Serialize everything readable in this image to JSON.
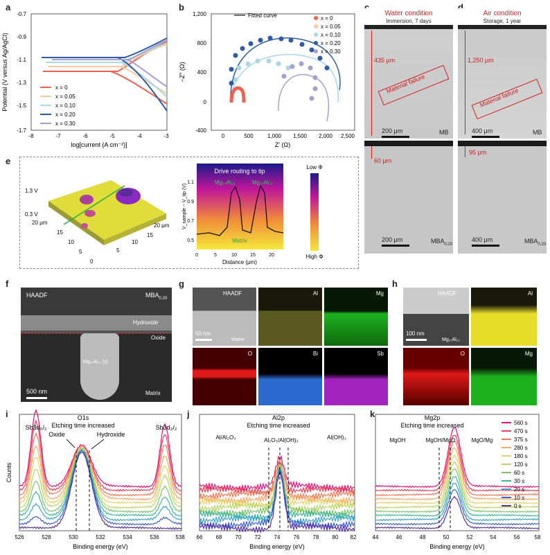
{
  "letters": {
    "a": "a",
    "b": "b",
    "c": "c",
    "d": "d",
    "e": "e",
    "f": "f",
    "g": "g",
    "h": "h",
    "i": "i",
    "j": "j",
    "k": "k"
  },
  "panel_a": {
    "ylabel": "Potential (V versus Ag/AgCl)",
    "xlabel": "log[current (A cm⁻²)]",
    "yticks": [
      "-0.7",
      "-0.9",
      "-1.1",
      "-1.3",
      "-1.5",
      "-1.7"
    ],
    "xticks": [
      "-8",
      "-7",
      "-6",
      "-5",
      "-4",
      "-3"
    ],
    "legend": [
      "x = 0",
      "x = 0.05",
      "x = 0.10",
      "x = 0.20",
      "x = 0.30"
    ]
  },
  "panel_b": {
    "ylabel": "−Z″ (Ω)",
    "xlabel": "Z′ (Ω)",
    "yticks": [
      "1,200",
      "800",
      "400",
      "0",
      "-400"
    ],
    "xticks": [
      "0",
      "500",
      "1,000",
      "1,500",
      "2,000",
      "2,500"
    ],
    "fitted": "Fitted curve",
    "legend": [
      "x = 0",
      "x = 0.05",
      "x = 0.10",
      "x = 0.20",
      "x = 0.30"
    ]
  },
  "panel_c": {
    "title": "Water condition",
    "subtitle": "Immersion, 7 days",
    "depth_top": "435 μm",
    "failure": "Material failure",
    "scale_top": "200 μm",
    "tag_top": "MB",
    "depth_bottom": "60 μm",
    "scale_bottom": "200 μm",
    "tag_bottom": "MBA",
    "tag_bottom_sub": "0.20"
  },
  "panel_d": {
    "title": "Air condition",
    "subtitle": "Storage, 1 year",
    "depth_top": "1,250 μm",
    "failure": "Material failure",
    "scale_top": "400 μm",
    "tag_top": "MB",
    "depth_bottom": "95 μm",
    "scale_bottom": "400 μm",
    "tag_bottom": "MBA",
    "tag_bottom_sub": "0.20"
  },
  "panel_e": {
    "z_top": "1.3 V",
    "z_bottom": "0.3 V",
    "axis_a": "20 μm",
    "axis_b": "20 μm",
    "ticks_a": [
      "15",
      "10",
      "5",
      "0"
    ],
    "ticks_b": [
      "15",
      "10",
      "5"
    ],
    "plot_title": "Drive routing to tip",
    "phase1": "Mg₁₇Al₁₂",
    "phase2": "Mg₁₇Al₁₂",
    "matrix": "Matrix",
    "ylabel": "V_sample − V_tip (V)",
    "xlabel": "Distance (μm)",
    "yticks": [
      "1.1",
      "0.9",
      "0.7",
      "0.5"
    ],
    "xticks": [
      "0",
      "5",
      "10",
      "15",
      "20"
    ],
    "low_phi": "Low Φ",
    "high_phi": "High Φ"
  },
  "panel_f": {
    "haadf": "HAADF",
    "tag": "MBA",
    "tag_sub": "0.20",
    "hydroxide": "Hydroxide",
    "oxide": "Oxide",
    "particle": "Mg₁₇Al₁₂ (γ)",
    "matrix": "Matrix",
    "scale": "500 nm"
  },
  "panel_g": {
    "haadf": "HAADF",
    "scale": "50 nm",
    "matrix": "Matrix",
    "maps": [
      "Al",
      "Mg",
      "O",
      "Bi",
      "Sb"
    ]
  },
  "panel_h": {
    "haadf": "HAADF",
    "scale": "100 nm",
    "phase": "Mg₁₇Al₁₂",
    "maps": [
      "Al",
      "O",
      "Mg"
    ]
  },
  "panel_i": {
    "title": "O1s",
    "subtitle": "Etching time increased",
    "left": "Sb3d₅/₂",
    "right": "Sb3d₃/₂",
    "oxide": "Oxide",
    "hydroxide": "Hydroxide",
    "ylabel": "Counts",
    "xlabel": "Binding energy (eV)",
    "xticks": [
      "526",
      "528",
      "530",
      "532",
      "534",
      "536",
      "538"
    ]
  },
  "panel_j": {
    "title": "Al2p",
    "subtitle": "Etching time increased",
    "l1": "Al/Al₂O₃",
    "l2": "Al₂O₃/Al(OH)₃",
    "l3": "Al(OH)₃",
    "xlabel": "Binding energy (eV)",
    "xticks": [
      "66",
      "68",
      "70",
      "72",
      "74",
      "76",
      "78",
      "80",
      "82"
    ]
  },
  "panel_k": {
    "title": "Mg2p",
    "subtitle": "Etching time increased",
    "l1": "MgOH",
    "l2": "MgOH/MgO",
    "l3": "MgO/Mg",
    "xlabel": "Binding energy (eV)",
    "xticks": [
      "44",
      "46",
      "48",
      "50",
      "52",
      "54",
      "56",
      "58"
    ],
    "legend": [
      "560 s",
      "470 s",
      "375 s",
      "280 s",
      "180 s",
      "120 s",
      "60 s",
      "30 s",
      "20 s",
      "10 s",
      "0 s"
    ]
  },
  "colors": {
    "x0": "#f0624d",
    "x005": "#f8c9a0",
    "x010": "#a9d7e4",
    "x020": "#2f5aa6",
    "x030": "#a79fd0",
    "failure_red": "#d22020",
    "xps": [
      "#e8127a",
      "#e8405a",
      "#f07a55",
      "#f5a968",
      "#e6d36a",
      "#b9d662",
      "#7cc36a",
      "#3fb59a",
      "#3aa6c9",
      "#3a5fcf",
      "#5a2ca0"
    ]
  }
}
